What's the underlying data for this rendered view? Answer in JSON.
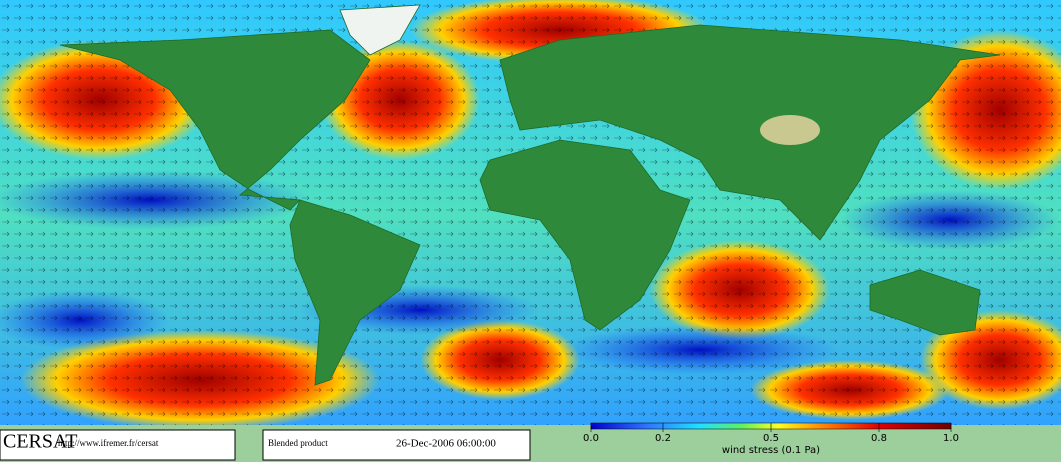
{
  "header": {
    "logo": "CERSAT",
    "url": "http://www.ifremer.fr/cersat"
  },
  "product": {
    "name": "Blended product",
    "timestamp": "26-Dec-2006 06:00:00"
  },
  "colorbar": {
    "label": "wind stress (0.1 Pa)",
    "range": [
      0,
      1
    ],
    "ticks": [
      {
        "value": 0,
        "label": "0.0"
      },
      0.2,
      0.5,
      0.8,
      {
        "value": 1,
        "label": "1.0"
      }
    ]
  }
}
